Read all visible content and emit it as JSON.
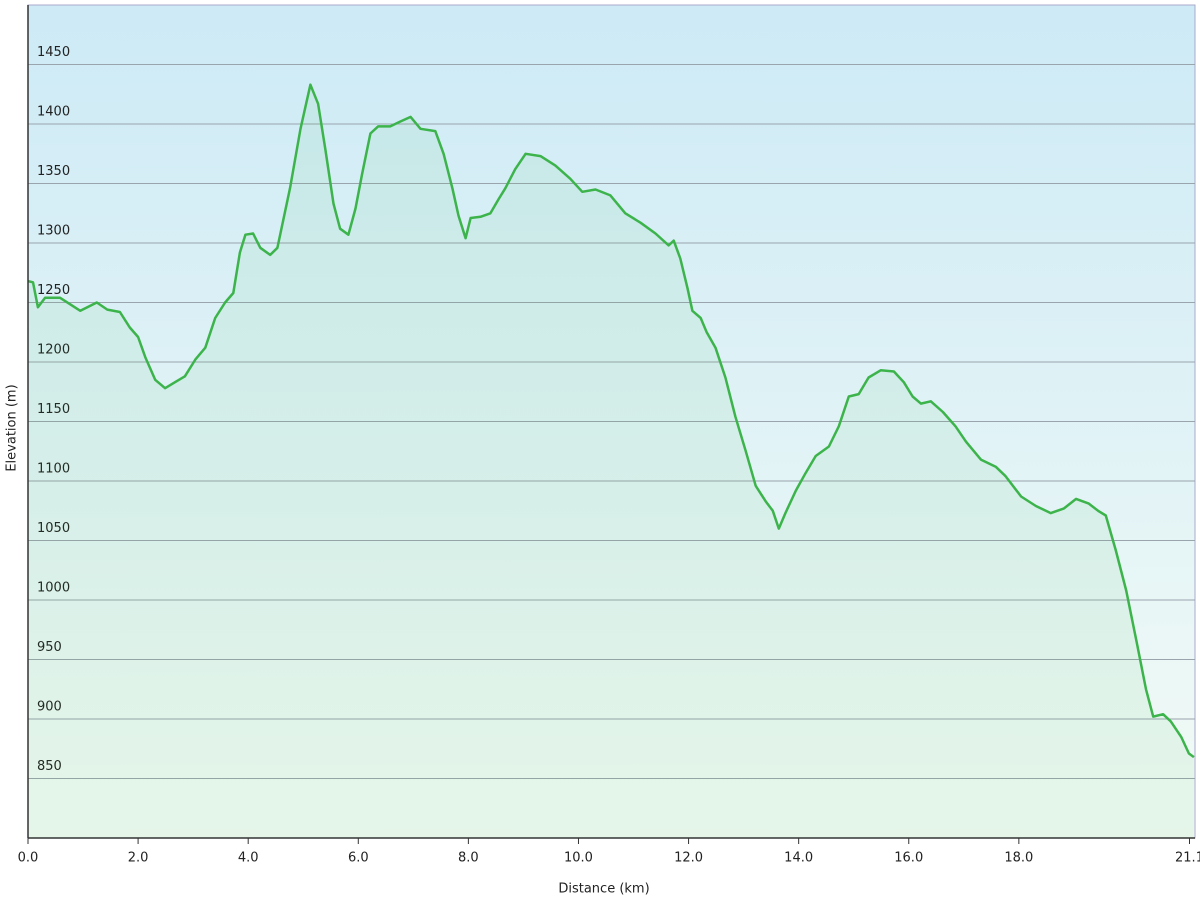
{
  "chart_data": {
    "type": "line",
    "xlabel": "Distance  (km)",
    "ylabel": "Elevation (m)",
    "x": [
      0,
      0.09,
      0.18,
      0.31,
      0.58,
      0.95,
      1.25,
      1.44,
      1.67,
      1.85,
      2.0,
      2.13,
      2.31,
      2.49,
      2.67,
      2.85,
      3.04,
      3.22,
      3.4,
      3.58,
      3.73,
      3.85,
      3.95,
      4.09,
      4.22,
      4.4,
      4.53,
      4.76,
      4.95,
      5.13,
      5.27,
      5.4,
      5.55,
      5.67,
      5.82,
      5.95,
      6.07,
      6.22,
      6.36,
      6.58,
      6.76,
      6.95,
      7.13,
      7.4,
      7.55,
      7.71,
      7.82,
      7.95,
      8.04,
      8.22,
      8.4,
      8.55,
      8.67,
      8.85,
      9.04,
      9.31,
      9.58,
      9.85,
      10.07,
      10.31,
      10.58,
      10.85,
      11.13,
      11.4,
      11.64,
      11.73,
      11.85,
      11.98,
      12.07,
      12.22,
      12.33,
      12.49,
      12.67,
      12.85,
      13.04,
      13.22,
      13.4,
      13.53,
      13.64,
      13.76,
      13.95,
      14.13,
      14.31,
      14.55,
      14.73,
      14.91,
      15.09,
      15.27,
      15.49,
      15.73,
      15.91,
      16.07,
      16.22,
      16.4,
      16.62,
      16.85,
      17.04,
      17.31,
      17.58,
      17.76,
      18.04,
      18.31,
      18.58,
      18.82,
      19.04,
      19.27,
      19.44,
      19.58,
      19.76,
      19.95,
      20.13,
      20.31,
      20.44,
      20.62,
      20.76,
      20.95,
      21.09,
      21.18
    ],
    "values": [
      1268,
      1267,
      1246,
      1254,
      1254,
      1243,
      1250,
      1244,
      1242,
      1229,
      1221,
      1204,
      1185,
      1178,
      1183,
      1188,
      1202,
      1212,
      1237,
      1250,
      1258,
      1292,
      1307,
      1308,
      1296,
      1290,
      1296,
      1346,
      1396,
      1433,
      1417,
      1379,
      1333,
      1312,
      1307,
      1329,
      1358,
      1392,
      1398,
      1398,
      1402,
      1406,
      1396,
      1394,
      1375,
      1346,
      1323,
      1304,
      1321,
      1322,
      1325,
      1337,
      1346,
      1362,
      1375,
      1373,
      1365,
      1354,
      1343,
      1345,
      1340,
      1325,
      1317,
      1308,
      1298,
      1302,
      1287,
      1262,
      1243,
      1237,
      1225,
      1212,
      1187,
      1154,
      1125,
      1096,
      1083,
      1075,
      1060,
      1073,
      1092,
      1107,
      1121,
      1129,
      1146,
      1171,
      1173,
      1187,
      1193,
      1192,
      1183,
      1171,
      1165,
      1167,
      1158,
      1146,
      1133,
      1118,
      1112,
      1104,
      1087,
      1079,
      1073,
      1077,
      1085,
      1081,
      1075,
      1071,
      1042,
      1008,
      967,
      925,
      902,
      904,
      898,
      885,
      871,
      868
    ],
    "color": "#3cb44b",
    "xlim": [
      0,
      21.2
    ],
    "ylim": [
      800,
      1500
    ],
    "xticks": [
      {
        "value": 0,
        "label": "0.0"
      },
      {
        "value": 2,
        "label": "2.0"
      },
      {
        "value": 4,
        "label": "4.0"
      },
      {
        "value": 6,
        "label": "6.0"
      },
      {
        "value": 8,
        "label": "8.0"
      },
      {
        "value": 10,
        "label": "10.0"
      },
      {
        "value": 12,
        "label": "12.0"
      },
      {
        "value": 14,
        "label": "14.0"
      },
      {
        "value": 16,
        "label": "16.0"
      },
      {
        "value": 18,
        "label": "18.0"
      },
      21.1
    ],
    "yticks": [
      850,
      900,
      950,
      1000,
      1050,
      1100,
      1150,
      1200,
      1250,
      1300,
      1350,
      1400,
      1450
    ],
    "grid": true
  }
}
